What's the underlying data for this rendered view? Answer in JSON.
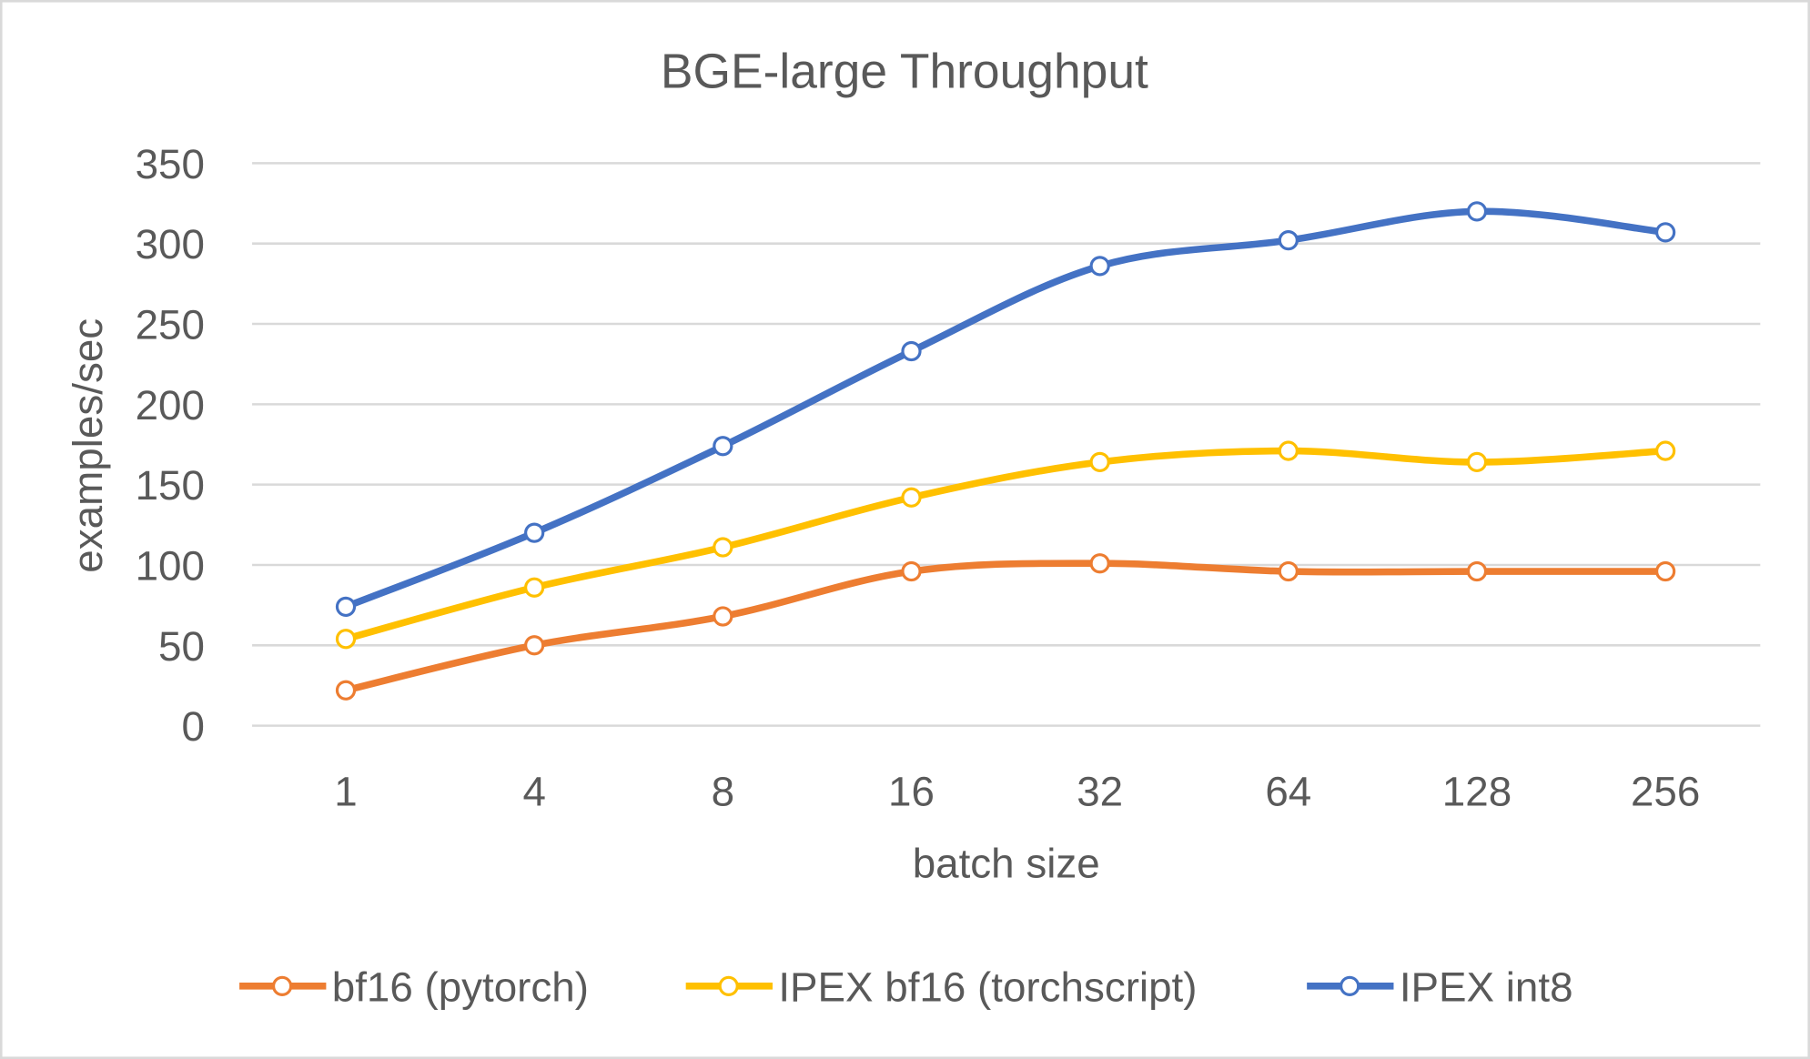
{
  "chart_data": {
    "type": "line",
    "title": "BGE-large Throughput",
    "xlabel": "batch size",
    "ylabel": "examples/sec",
    "categories": [
      "1",
      "4",
      "8",
      "16",
      "32",
      "64",
      "128",
      "256"
    ],
    "ylim": [
      0,
      350
    ],
    "yticks": [
      0,
      50,
      100,
      150,
      200,
      250,
      300,
      350
    ],
    "grid": true,
    "legend": "bottom",
    "series": [
      {
        "name": "bf16 (pytorch)",
        "color": "#ED7D31",
        "values": [
          22,
          50,
          68,
          96,
          101,
          96,
          96,
          96
        ]
      },
      {
        "name": "IPEX bf16 (torchscript)",
        "color": "#FFC000",
        "values": [
          54,
          86,
          111,
          142,
          164,
          171,
          164,
          171
        ]
      },
      {
        "name": "IPEX int8",
        "color": "#4472C4",
        "values": [
          74,
          120,
          174,
          233,
          286,
          302,
          320,
          307
        ]
      }
    ]
  }
}
